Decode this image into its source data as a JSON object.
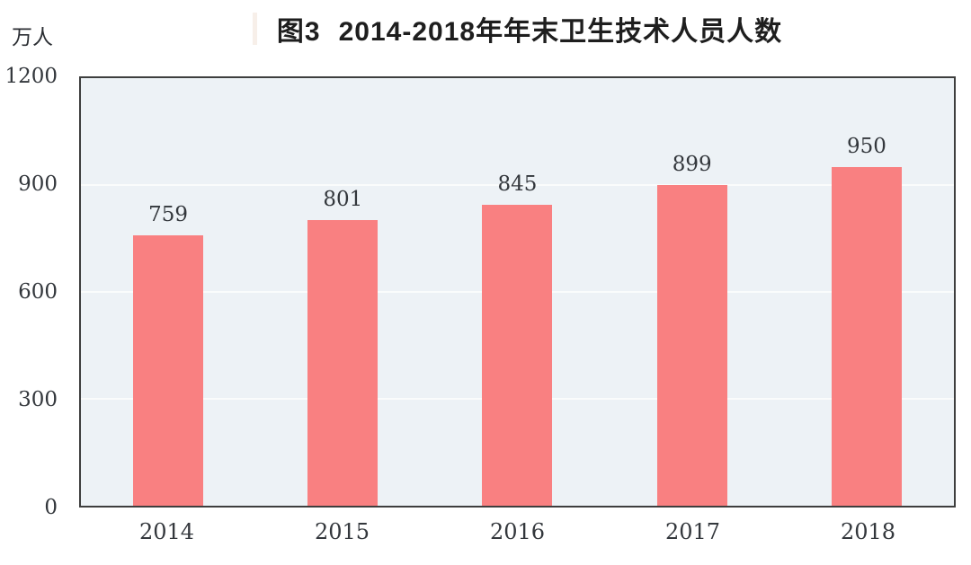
{
  "chart_data": {
    "type": "bar",
    "figure_label": "图3",
    "title": "2014-2018年年末卫生技术人员人数",
    "unit_label": "万人",
    "xlabel": "",
    "ylabel": "万人",
    "categories": [
      "2014",
      "2015",
      "2016",
      "2017",
      "2018"
    ],
    "values": [
      759,
      801,
      845,
      899,
      950
    ],
    "ylim": [
      0,
      1200
    ],
    "yticks": [
      0,
      300,
      600,
      900,
      1200
    ],
    "grid": true,
    "legend": false,
    "bar_color": "#F98081",
    "plot_background": "#EDF2F6",
    "gridline_color": "#FAFCFC",
    "axis_border_color": "#3E3E3E",
    "text_color": "#33373C"
  }
}
